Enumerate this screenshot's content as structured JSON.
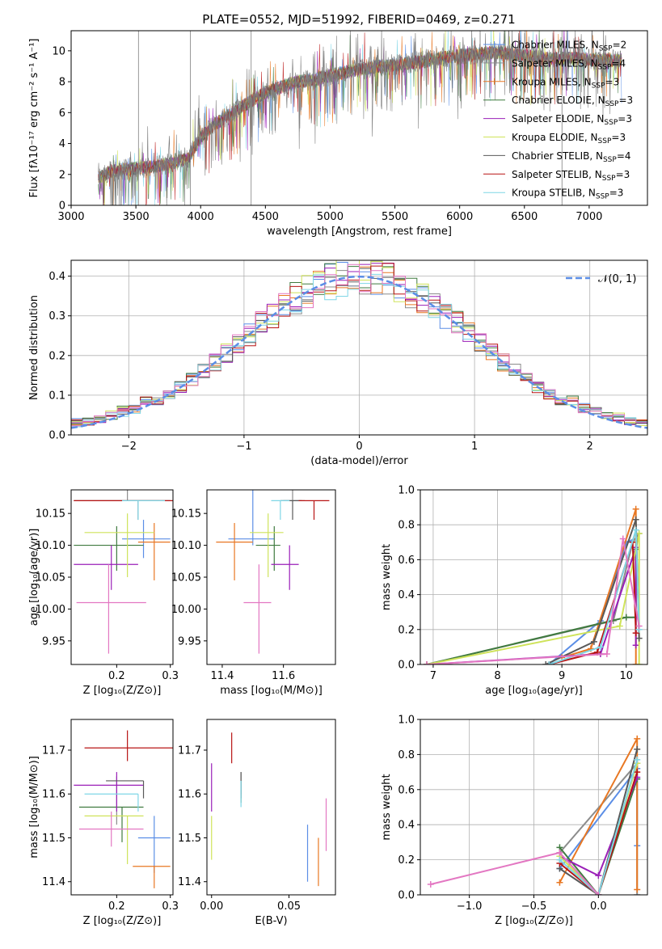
{
  "colors": {
    "chabrier_miles": "#5b8ee6",
    "salpeter_miles": "#8c8c8c",
    "kroupa_miles": "#e87722",
    "chabrier_elodie": "#3f7a3f",
    "salpeter_elodie": "#9a1fb8",
    "kroupa_elodie": "#cfe35a",
    "chabrier_stelib": "#595959",
    "salpeter_stelib": "#b81414",
    "kroupa_stelib": "#7fd6e6",
    "grid": "#b0b0b0",
    "normal": "#5b8ee6",
    "pink": "#e377c2"
  },
  "chart_data": [
    {
      "type": "line",
      "title": "PLATE=0552, MJD=51992, FIBERID=0469, z=0.271",
      "xlabel": "wavelength [Angstrom, rest frame]",
      "ylabel": "Flux [f$_\\lambda$10$^{-17}$ erg cm$^{-2}$ s$^{-1}$ A$^{-1}$]",
      "xlim": [
        3000,
        7450
      ],
      "ylim": [
        0,
        11.3
      ],
      "xticks": [
        "3000",
        "3500",
        "4000",
        "4500",
        "5000",
        "5500",
        "6000",
        "6500",
        "7000"
      ],
      "yticks": [
        "0",
        "2",
        "4",
        "6",
        "8",
        "10"
      ],
      "legend": [
        "Chabrier MILES, N_SSP=2",
        "Salpeter MILES, N_SSP=4",
        "Kroupa MILES, N_SSP=3",
        "Chabrier ELODIE, N_SSP=3",
        "Salpeter ELODIE, N_SSP=3",
        "Kroupa ELODIE, N_SSP=3",
        "Chabrier STELIB, N_SSP=4",
        "Salpeter STELIB, N_SSP=3",
        "Kroupa STELIB, N_SSP=3"
      ],
      "legend_placement": "right",
      "spectrum_envelope": {
        "x": [
          3210,
          3300,
          3500,
          3700,
          3900,
          4000,
          4100,
          4300,
          4500,
          4700,
          4900,
          5100,
          5300,
          5500,
          5700,
          5900,
          6100,
          6300,
          6500,
          6700,
          6900,
          7100,
          7250
        ],
        "y": [
          1.7,
          2.2,
          2.4,
          2.6,
          3.0,
          4.4,
          5.2,
          6.3,
          7.3,
          7.9,
          8.2,
          8.6,
          8.9,
          9.1,
          9.3,
          9.6,
          9.8,
          9.9,
          9.7,
          9.5,
          9.5,
          9.4,
          9.4
        ]
      }
    },
    {
      "type": "step",
      "xlabel": "(data-model)/error",
      "ylabel": "Normed distribution",
      "xlim": [
        -2.5,
        2.5
      ],
      "ylim": [
        0,
        0.44
      ],
      "xticks": [
        "−2",
        "−1",
        "0",
        "1",
        "2"
      ],
      "yticks": [
        "0.0",
        "0.1",
        "0.2",
        "0.3",
        "0.4"
      ],
      "legend": "$\\mathcal{N}(0,1)$",
      "legend_placement": "top-right",
      "grid": true
    },
    {
      "type": "errorbar",
      "xlabel": "Z [log$_{10}$(Z/Z$_\\odot$)]",
      "ylabel": "age  [log$_{10}$(age/yr)]",
      "xlim": [
        0.115,
        0.305
      ],
      "ylim": [
        9.913,
        10.187
      ],
      "xticks": [
        "0.2",
        "0.3"
      ],
      "yticks": [
        "9.95",
        "10.00",
        "10.05",
        "10.10",
        "10.15"
      ],
      "points": [
        {
          "c": "chabrier_miles",
          "x": 0.25,
          "y": 10.11,
          "xe": [
            0.04,
            0.05
          ],
          "ye": [
            0.03,
            0.03
          ]
        },
        {
          "c": "salpeter_miles",
          "x": 0.22,
          "y": 10.17,
          "xe": [
            0.0,
            0.06
          ],
          "ye": [
            0.0,
            0.03
          ]
        },
        {
          "c": "kroupa_miles",
          "x": 0.27,
          "y": 10.105,
          "xe": [
            0.03,
            0.03
          ],
          "ye": [
            0.06,
            0.03
          ]
        },
        {
          "c": "chabrier_elodie",
          "x": 0.2,
          "y": 10.1,
          "xe": [
            0.08,
            0.05
          ],
          "ye": [
            0.04,
            0.03
          ]
        },
        {
          "c": "salpeter_elodie",
          "x": 0.19,
          "y": 10.07,
          "xe": [
            0.07,
            0.05
          ],
          "ye": [
            0.04,
            0.03
          ]
        },
        {
          "c": "kroupa_elodie",
          "x": 0.22,
          "y": 10.12,
          "xe": [
            0.08,
            0.05
          ],
          "ye": [
            0.07,
            0.03
          ]
        },
        {
          "c": "chabrier_stelib",
          "x": 0.24,
          "y": 10.17,
          "xe": [
            0.12,
            0.06
          ],
          "ye": [
            0.03,
            0.0
          ]
        },
        {
          "c": "salpeter_stelib",
          "x": 0.22,
          "y": 10.17,
          "xe": [
            0.1,
            0.09
          ],
          "ye": [
            0.0,
            0.0
          ]
        },
        {
          "c": "kroupa_stelib",
          "x": 0.24,
          "y": 10.17,
          "xe": [
            0.03,
            0.05
          ],
          "ye": [
            0.03,
            0.0
          ]
        },
        {
          "c": "pink",
          "x": 0.185,
          "y": 10.01,
          "xe": [
            0.06,
            0.07
          ],
          "ye": [
            0.08,
            0.06
          ]
        }
      ]
    },
    {
      "type": "errorbar",
      "xlabel": "mass [log$_{10}$(M/M$_\\odot$)]",
      "xlim": [
        11.35,
        11.77
      ],
      "ylim": [
        9.913,
        10.187
      ],
      "xticks": [
        "11.4",
        "11.6"
      ],
      "yticks": [
        "9.95",
        "10.00",
        "10.05",
        "10.10",
        "10.15"
      ],
      "points": [
        {
          "c": "chabrier_miles",
          "x": 11.5,
          "y": 10.11,
          "xe": [
            0.08,
            0.07
          ],
          "ye": [
            0.01,
            0.08
          ]
        },
        {
          "c": "salpeter_miles",
          "x": 11.63,
          "y": 10.17,
          "xe": [
            0.03,
            0.04
          ],
          "ye": [
            0.0,
            0.03
          ]
        },
        {
          "c": "kroupa_miles",
          "x": 11.44,
          "y": 10.105,
          "xe": [
            0.06,
            0.06
          ],
          "ye": [
            0.06,
            0.03
          ]
        },
        {
          "c": "chabrier_elodie",
          "x": 11.57,
          "y": 10.1,
          "xe": [
            0.06,
            0.02
          ],
          "ye": [
            0.04,
            0.03
          ]
        },
        {
          "c": "salpeter_elodie",
          "x": 11.62,
          "y": 10.07,
          "xe": [
            0.06,
            0.03
          ],
          "ye": [
            0.04,
            0.03
          ]
        },
        {
          "c": "kroupa_elodie",
          "x": 11.55,
          "y": 10.12,
          "xe": [
            0.06,
            0.05
          ],
          "ye": [
            0.07,
            0.03
          ]
        },
        {
          "c": "chabrier_stelib",
          "x": 11.63,
          "y": 10.17,
          "xe": [
            0.04,
            0.03
          ],
          "ye": [
            0.03,
            0.0
          ]
        },
        {
          "c": "salpeter_stelib",
          "x": 11.7,
          "y": 10.17,
          "xe": [
            0.05,
            0.05
          ],
          "ye": [
            0.03,
            0.0
          ]
        },
        {
          "c": "kroupa_stelib",
          "x": 11.59,
          "y": 10.17,
          "xe": [
            0.03,
            0.03
          ],
          "ye": [
            0.03,
            0.0
          ]
        },
        {
          "c": "pink",
          "x": 11.52,
          "y": 10.01,
          "xe": [
            0.05,
            0.04
          ],
          "ye": [
            0.08,
            0.06
          ]
        }
      ]
    },
    {
      "type": "line",
      "xlabel": "age  [log$_{10}$(age/yr)]",
      "ylabel": "mass weight",
      "xlim": [
        6.8,
        10.33
      ],
      "ylim": [
        0,
        1
      ],
      "xticks": [
        "7",
        "8",
        "9",
        "10"
      ],
      "yticks": [
        "0.0",
        "0.2",
        "0.4",
        "0.6",
        "0.8",
        "1.0"
      ],
      "grid": true,
      "series": [
        {
          "c": "chabrier_miles",
          "x": [
            8.8,
            9.6,
            10.0,
            10.15
          ],
          "y": [
            0.0,
            0.25,
            0.7,
            0.72
          ]
        },
        {
          "c": "salpeter_miles",
          "x": [
            6.9,
            9.8,
            10.1,
            10.2
          ],
          "y": [
            0.0,
            0.25,
            0.7,
            0.75
          ]
        },
        {
          "c": "kroupa_miles",
          "x": [
            9.0,
            9.45,
            10.15,
            10.15
          ],
          "y": [
            0.04,
            0.09,
            0.89,
            0.0
          ]
        },
        {
          "c": "chabrier_elodie",
          "x": [
            6.9,
            10.0,
            10.15,
            10.15
          ],
          "y": [
            0.0,
            0.27,
            0.27,
            0.66
          ]
        },
        {
          "c": "salpeter_elodie",
          "x": [
            6.9,
            9.6,
            10.15,
            10.15
          ],
          "y": [
            0.0,
            0.06,
            0.67,
            0.11
          ]
        },
        {
          "c": "kroupa_elodie",
          "x": [
            6.9,
            9.9,
            10.2,
            10.2
          ],
          "y": [
            0.0,
            0.22,
            0.75,
            0.0
          ]
        },
        {
          "c": "chabrier_stelib",
          "x": [
            8.75,
            9.5,
            10.15,
            10.2
          ],
          "y": [
            0.0,
            0.13,
            0.83,
            0.15
          ]
        },
        {
          "c": "salpeter_stelib",
          "x": [
            8.8,
            9.55,
            10.1,
            10.15
          ],
          "y": [
            0.0,
            0.07,
            0.7,
            0.18
          ]
        },
        {
          "c": "kroupa_stelib",
          "x": [
            8.8,
            9.6,
            10.15,
            10.2
          ],
          "y": [
            0.0,
            0.1,
            0.77,
            0.2
          ]
        },
        {
          "c": "pink",
          "x": [
            6.9,
            9.7,
            9.95,
            10.2
          ],
          "y": [
            0.0,
            0.06,
            0.72,
            0.22
          ]
        }
      ]
    },
    {
      "type": "errorbar",
      "xlabel": "Z [log$_{10}$(Z/Z$_\\odot$)]",
      "ylabel": "mass [log$_{10}$(M/M$_\\odot$)]",
      "xlim": [
        0.115,
        0.305
      ],
      "ylim": [
        11.37,
        11.77
      ],
      "xticks": [
        "0.2",
        "0.3"
      ],
      "yticks": [
        "11.4",
        "11.5",
        "11.6",
        "11.7"
      ],
      "points": [
        {
          "c": "chabrier_miles",
          "x": 0.27,
          "y": 11.5,
          "xe": [
            0.03,
            0.03
          ],
          "ye": [
            0.08,
            0.05
          ]
        },
        {
          "c": "salpeter_miles",
          "x": 0.2,
          "y": 11.56,
          "xe": [
            0.0,
            0.0
          ],
          "ye": [
            0.03,
            0.08
          ]
        },
        {
          "c": "kroupa_miles",
          "x": 0.27,
          "y": 11.435,
          "xe": [
            0.04,
            0.03
          ],
          "ye": [
            0.05,
            0.0
          ]
        },
        {
          "c": "chabrier_elodie",
          "x": 0.21,
          "y": 11.57,
          "xe": [
            0.08,
            0.04
          ],
          "ye": [
            0.08,
            0.0
          ]
        },
        {
          "c": "salpeter_elodie",
          "x": 0.2,
          "y": 11.62,
          "xe": [
            0.08,
            0.05
          ],
          "ye": [
            0.06,
            0.03
          ]
        },
        {
          "c": "kroupa_elodie",
          "x": 0.22,
          "y": 11.55,
          "xe": [
            0.08,
            0.03
          ],
          "ye": [
            0.11,
            0.0
          ]
        },
        {
          "c": "chabrier_stelib",
          "x": 0.25,
          "y": 11.63,
          "xe": [
            0.07,
            0.0
          ],
          "ye": [
            0.04,
            0.0
          ]
        },
        {
          "c": "salpeter_stelib",
          "x": 0.22,
          "y": 11.705,
          "xe": [
            0.08,
            0.09
          ],
          "ye": [
            0.03,
            0.04
          ]
        },
        {
          "c": "kroupa_stelib",
          "x": 0.24,
          "y": 11.6,
          "xe": [
            0.1,
            0.0
          ],
          "ye": [
            0.04,
            0.0
          ]
        },
        {
          "c": "pink",
          "x": 0.19,
          "y": 11.52,
          "xe": [
            0.06,
            0.06
          ],
          "ye": [
            0.04,
            0.04
          ]
        }
      ]
    },
    {
      "type": "errorbar",
      "xlabel": "E(B-V)",
      "xlim": [
        -0.003,
        0.08
      ],
      "ylim": [
        11.37,
        11.77
      ],
      "xticks": [
        "0.00",
        "0.05"
      ],
      "yticks": [
        "11.4",
        "11.5",
        "11.6",
        "11.7"
      ],
      "points": [
        {
          "c": "chabrier_miles",
          "x": 0.062,
          "y": 11.46,
          "xe": [
            0,
            0
          ],
          "ye": [
            0.06,
            0.07
          ]
        },
        {
          "c": "salpeter_miles",
          "x": 0.019,
          "y": 11.63,
          "xe": [
            0,
            0
          ],
          "ye": [
            0.03,
            0.02
          ]
        },
        {
          "c": "kroupa_miles",
          "x": 0.069,
          "y": 11.45,
          "xe": [
            0,
            0
          ],
          "ye": [
            0.06,
            0.05
          ]
        },
        {
          "c": "chabrier_elodie",
          "x": 0.019,
          "y": 11.62,
          "xe": [
            0,
            0
          ],
          "ye": [
            0.04,
            0.01
          ]
        },
        {
          "c": "salpeter_elodie",
          "x": 0.0,
          "y": 11.61,
          "xe": [
            0,
            0
          ],
          "ye": [
            0.05,
            0.06
          ]
        },
        {
          "c": "kroupa_elodie",
          "x": 0.0,
          "y": 11.5,
          "xe": [
            0,
            0
          ],
          "ye": [
            0.05,
            0.05
          ]
        },
        {
          "c": "chabrier_stelib",
          "x": 0.019,
          "y": 11.63,
          "xe": [
            0,
            0
          ],
          "ye": [
            0.04,
            0.02
          ]
        },
        {
          "c": "salpeter_stelib",
          "x": 0.013,
          "y": 11.71,
          "xe": [
            0,
            0
          ],
          "ye": [
            0.04,
            0.03
          ]
        },
        {
          "c": "kroupa_stelib",
          "x": 0.019,
          "y": 11.6,
          "xe": [
            0,
            0
          ],
          "ye": [
            0.03,
            0.03
          ]
        },
        {
          "c": "pink",
          "x": 0.074,
          "y": 11.52,
          "xe": [
            0,
            0
          ],
          "ye": [
            0.05,
            0.07
          ]
        }
      ]
    },
    {
      "type": "line",
      "xlabel": "Z [log$_{10}$(Z/Z$_\\odot$)]",
      "ylabel": "mass weight",
      "xlim": [
        -1.38,
        0.38
      ],
      "ylim": [
        0,
        1
      ],
      "xticks": [
        "−1.0",
        "−0.5",
        "0.0"
      ],
      "yticks": [
        "0.0",
        "0.2",
        "0.4",
        "0.6",
        "0.8",
        "1.0"
      ],
      "grid": true,
      "series": [
        {
          "c": "chabrier_miles",
          "x": [
            -0.3,
            0.3,
            0.3
          ],
          "y": [
            0.15,
            0.72,
            0.28
          ]
        },
        {
          "c": "salpeter_miles",
          "x": [
            -0.3,
            0.3,
            0.3
          ],
          "y": [
            0.24,
            0.75,
            0.0
          ]
        },
        {
          "c": "kroupa_miles",
          "x": [
            -0.3,
            0.3,
            0.3
          ],
          "y": [
            0.07,
            0.89,
            0.03
          ]
        },
        {
          "c": "chabrier_elodie",
          "x": [
            -0.3,
            0.0,
            0.3
          ],
          "y": [
            0.27,
            0.0,
            0.66
          ]
        },
        {
          "c": "salpeter_elodie",
          "x": [
            -0.3,
            0.0,
            0.3
          ],
          "y": [
            0.22,
            0.11,
            0.67
          ]
        },
        {
          "c": "kroupa_elodie",
          "x": [
            -0.3,
            0.0,
            0.3
          ],
          "y": [
            0.22,
            0.0,
            0.75
          ]
        },
        {
          "c": "chabrier_stelib",
          "x": [
            -0.3,
            0.0,
            0.3
          ],
          "y": [
            0.15,
            0.0,
            0.83
          ]
        },
        {
          "c": "salpeter_stelib",
          "x": [
            -0.3,
            0.0,
            0.3
          ],
          "y": [
            0.18,
            0.0,
            0.7
          ]
        },
        {
          "c": "kroupa_stelib",
          "x": [
            -0.3,
            0.0,
            0.3
          ],
          "y": [
            0.2,
            0.0,
            0.77
          ]
        },
        {
          "c": "pink",
          "x": [
            -1.3,
            -0.3,
            0.0
          ],
          "y": [
            0.06,
            0.24,
            0.0
          ]
        }
      ]
    }
  ]
}
